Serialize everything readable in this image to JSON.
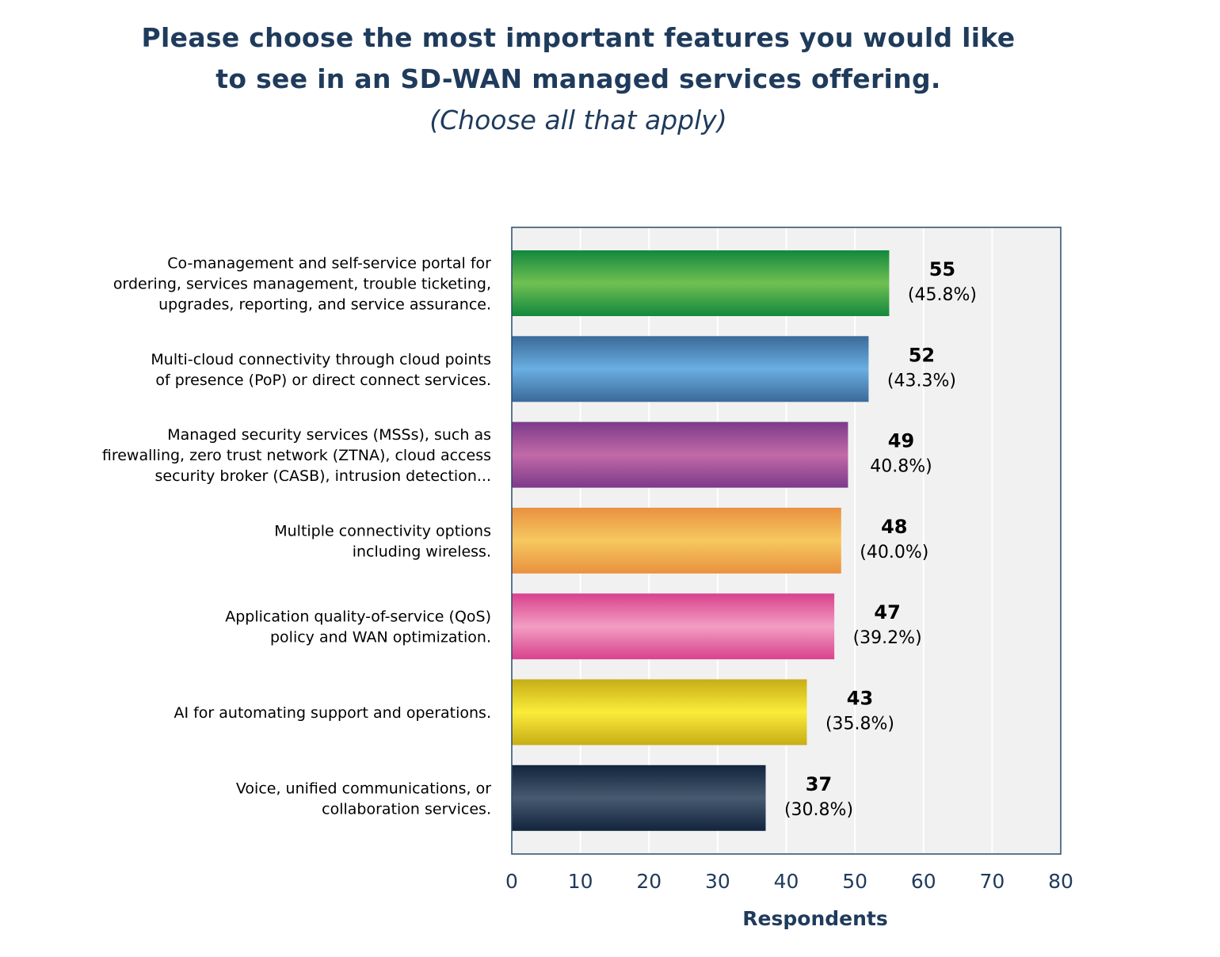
{
  "title_lines": [
    "Please choose the most important features you would like",
    "to see in an SD-WAN managed services offering."
  ],
  "subtitle": "(Choose all that apply)",
  "chart_data": {
    "type": "bar",
    "orientation": "horizontal",
    "title": "Please choose the most important features you would like to see in an SD-WAN managed services offering.",
    "subtitle": "(Choose all that apply)",
    "xlabel": "Respondents",
    "ylabel": "",
    "xlim": [
      0,
      80
    ],
    "xticks": [
      0,
      10,
      20,
      30,
      40,
      50,
      60,
      70,
      80
    ],
    "grid": true,
    "legend": "none",
    "categories": [
      [
        "Co-management and self-service portal for",
        "ordering, services management, trouble ticketing,",
        "upgrades, reporting, and service assurance."
      ],
      [
        "Multi-cloud connectivity through cloud points",
        "of presence (PoP) or direct connect services."
      ],
      [
        "Managed security services (MSSs), such as",
        "firewalling, zero trust network (ZTNA), cloud access",
        "security broker (CASB), intrusion detection..."
      ],
      [
        "Multiple connectivity options",
        "including wireless."
      ],
      [
        "Application quality-of-service (QoS)",
        "policy and WAN optimization."
      ],
      [
        "AI for automating support and operations."
      ],
      [
        "Voice, unified communications, or",
        "collaboration services."
      ]
    ],
    "values": [
      55,
      52,
      49,
      48,
      47,
      43,
      37
    ],
    "percent_labels": [
      "(45.8%)",
      "(43.3%)",
      "40.8%)",
      "(40.0%)",
      "(39.2%)",
      "(35.8%)",
      "(30.8%)"
    ],
    "bar_colors": [
      {
        "edge": "#12883d",
        "mid": "#70c052"
      },
      {
        "edge": "#3a6a98",
        "mid": "#6aaee2"
      },
      {
        "edge": "#7c3a8a",
        "mid": "#c26aa8"
      },
      {
        "edge": "#e9913f",
        "mid": "#f6c860"
      },
      {
        "edge": "#d8418d",
        "mid": "#f29ec3"
      },
      {
        "edge": "#c6ad16",
        "mid": "#fbec3a"
      },
      {
        "edge": "#13243c",
        "mid": "#465a70"
      }
    ],
    "colors": {
      "plot_background": "#f1f1f1",
      "plot_border": "#2a4a6f",
      "gridline": "#ffffff",
      "axis_text": "#1f3b5c",
      "category_text": "#000000",
      "value_text": "#000000"
    }
  }
}
